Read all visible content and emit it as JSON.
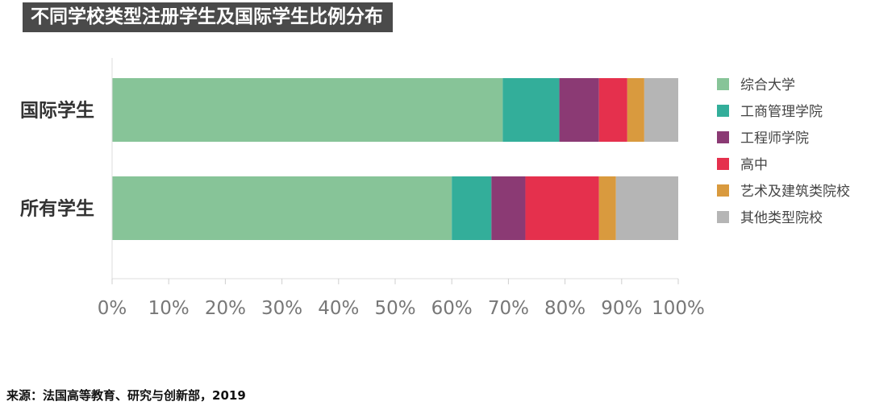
{
  "chart_data": {
    "type": "bar",
    "orientation": "horizontal",
    "stacked": true,
    "title": "不同学校类型注册学生及国际学生比例分布",
    "categories": [
      "国际学生",
      "所有学生"
    ],
    "series": [
      {
        "name": "综合大学",
        "color": "#87c498",
        "values": [
          69,
          60
        ]
      },
      {
        "name": "工商管理学院",
        "color": "#33ae9a",
        "values": [
          10,
          7
        ]
      },
      {
        "name": "工程师学院",
        "color": "#8b3a74",
        "values": [
          7,
          6
        ]
      },
      {
        "name": "高中",
        "color": "#e5304d",
        "values": [
          5,
          13
        ]
      },
      {
        "name": "艺术及建筑类院校",
        "color": "#d99a3e",
        "values": [
          3,
          3
        ]
      },
      {
        "name": "其他类型院校",
        "color": "#b5b5b5",
        "values": [
          6,
          11
        ]
      }
    ],
    "xlim": [
      0,
      100
    ],
    "xticks": [
      "0%",
      "10%",
      "20%",
      "30%",
      "40%",
      "50%",
      "60%",
      "70%",
      "80%",
      "90%",
      "100%"
    ],
    "legend_position": "right",
    "grid": false
  },
  "source": "来源：法国高等教育、研究与创新部，2019"
}
